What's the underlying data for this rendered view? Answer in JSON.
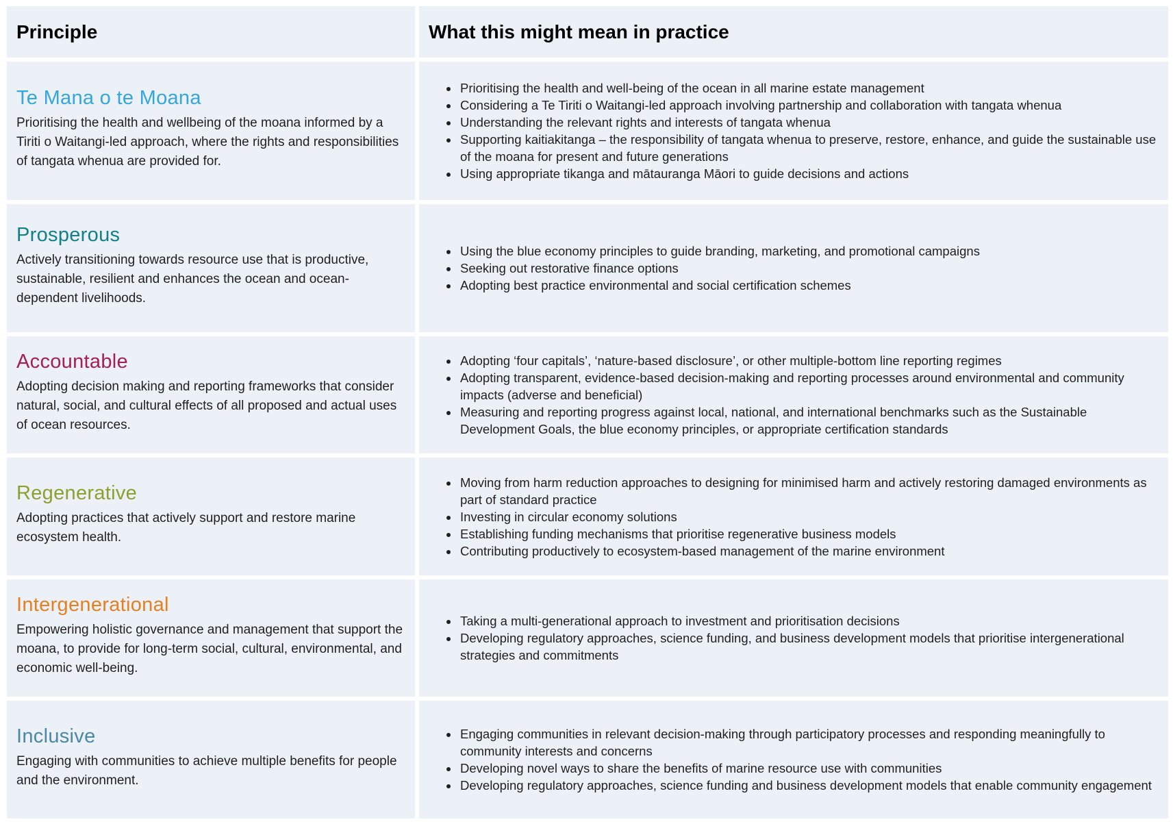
{
  "header": {
    "principle": "Principle",
    "practice": "What this might mean in practice"
  },
  "rows": [
    {
      "title": "Te Mana o te Moana",
      "color": "#35a6dd",
      "description": "Prioritising the health and wellbeing of the moana informed by a Tiriti o Waitangi-led approach, where the rights and responsibilities of tangata whenua are provided for.",
      "practice": [
        "Prioritising the health and well-being of the ocean in all marine estate management",
        "Considering a Te Tiriti o Waitangi-led approach involving partnership and collaboration with tangata whenua",
        "Understanding the relevant rights and interests of tangata whenua",
        "Supporting kaitiakitanga – the responsibility of tangata whenua to preserve, restore, enhance, and guide the sustainable use of the moana for present and future generations",
        "Using appropriate tikanga and mātauranga Māori to guide decisions and actions"
      ]
    },
    {
      "title": "Prosperous",
      "color": "#12808a",
      "description": "Actively transitioning towards resource use that is productive, sustainable, resilient and enhances the ocean and ocean-dependent livelihoods.",
      "practice": [
        "Using the blue economy principles to guide branding, marketing, and promotional campaigns",
        "Seeking out restorative finance options",
        "Adopting best practice environmental and social certification schemes"
      ]
    },
    {
      "title": "Accountable",
      "color": "#a61f52",
      "description": "Adopting decision making and reporting frameworks that consider natural, social, and cultural effects of all proposed and actual uses of ocean resources.",
      "practice": [
        "Adopting ‘four capitals’, ‘nature-based disclosure’, or other multiple-bottom line reporting regimes",
        "Adopting transparent, evidence-based decision-making and reporting processes around environmental and community impacts (adverse and beneficial)",
        "Measuring and reporting progress against local, national, and international benchmarks such as the Sustainable Development Goals, the blue economy principles, or appropriate certification standards"
      ]
    },
    {
      "title": "Regenerative",
      "color": "#8aa12f",
      "description": "Adopting practices that actively support and restore marine ecosystem health.",
      "practice": [
        "Moving from harm reduction approaches to designing for minimised harm and actively restoring damaged environments as part of standard practice",
        "Investing in circular economy solutions",
        "Establishing funding mechanisms that prioritise regenerative business models",
        "Contributing productively to ecosystem-based management of the marine environment"
      ]
    },
    {
      "title": "Intergenerational",
      "color": "#e4801f",
      "description": "Empowering holistic governance and management that support the moana, to provide for long-term social, cultural, environmental, and economic well-being.",
      "practice": [
        "Taking a multi-generational approach to investment and prioritisation decisions",
        "Developing regulatory approaches, science funding, and business development models that prioritise intergenerational strategies and commitments"
      ]
    },
    {
      "title": "Inclusive",
      "color": "#4a88a6",
      "description": "Engaging with communities to achieve multiple benefits for people and the environment.",
      "practice": [
        "Engaging communities in relevant decision-making through participatory processes and responding meaningfully to community interests and concerns",
        "Developing novel ways to share the benefits of marine resource use with communities",
        "Developing regulatory approaches, science funding and business development models that enable community engagement"
      ]
    }
  ]
}
